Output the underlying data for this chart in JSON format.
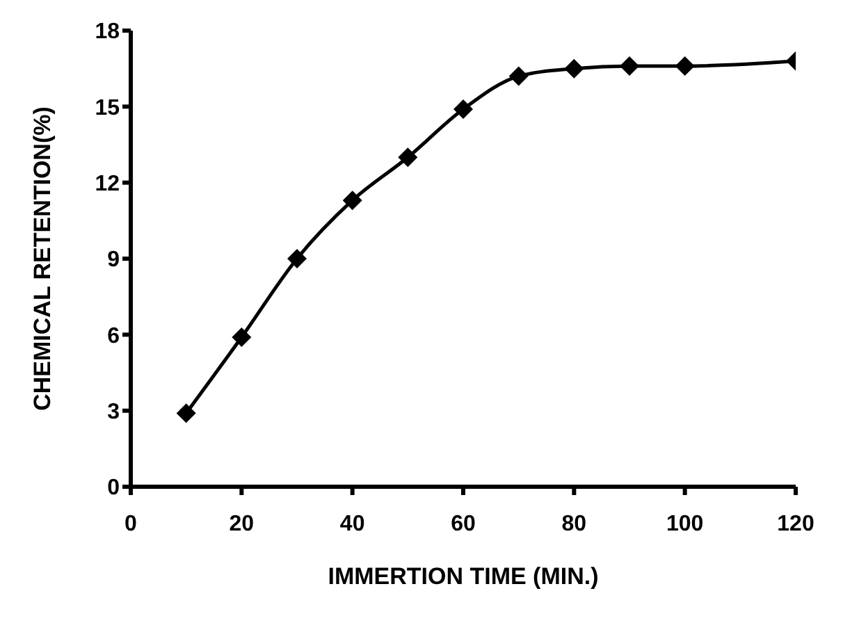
{
  "chart_data": {
    "type": "line",
    "xlabel": "IMMERTION TIME (MIN.)",
    "ylabel": "CHEMICAL RETENTION(%)",
    "x": [
      10,
      20,
      30,
      40,
      50,
      60,
      70,
      80,
      90,
      100,
      120
    ],
    "series": [
      {
        "color": "#000000",
        "values": [
          2.9,
          5.9,
          9.0,
          11.3,
          13.0,
          14.9,
          16.2,
          16.5,
          16.6,
          16.6,
          16.8
        ]
      }
    ],
    "xlim": [
      0,
      120
    ],
    "xticks": [
      0,
      20,
      40,
      60,
      80,
      100,
      120
    ],
    "ylim": [
      0,
      18
    ],
    "yticks": [
      0,
      3,
      6,
      9,
      12,
      15,
      18
    ],
    "grid": false,
    "legend": false,
    "marker": "diamond",
    "line_style": "solid"
  }
}
